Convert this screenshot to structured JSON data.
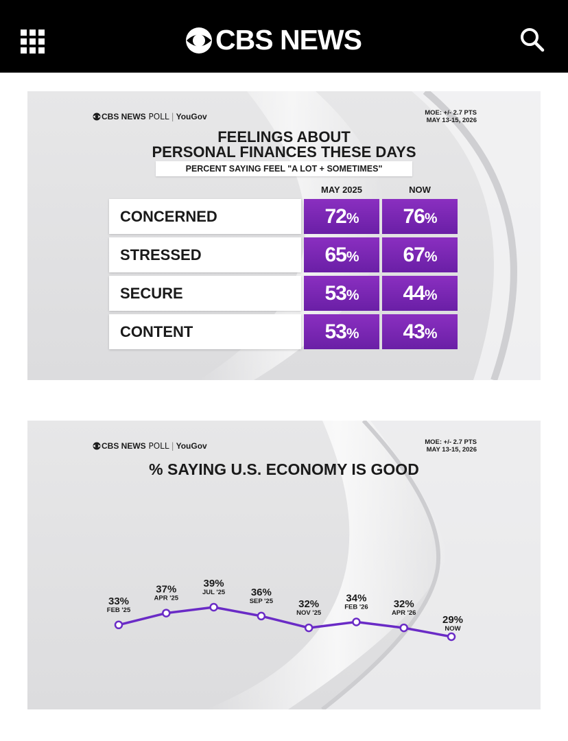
{
  "header": {
    "brand": "CBS NEWS",
    "menu_icon": "grid-menu-icon",
    "search_icon": "search-icon"
  },
  "poll_logo": {
    "cbs": "CBS NEWS",
    "poll": "POLL",
    "yougov": "YouGov"
  },
  "moe": {
    "line1": "MOE: +/- 2.7 PTS",
    "line2": "MAY 13-15, 2026"
  },
  "card1": {
    "title_line1": "FEELINGS ABOUT",
    "title_line2": "PERSONAL FINANCES THESE DAYS",
    "subtitle": "PERCENT SAYING FEEL \"A LOT + SOMETIMES\"",
    "col_may": "MAY 2025",
    "col_now": "NOW",
    "rows": [
      {
        "label": "CONCERNED",
        "may": "72",
        "now": "76"
      },
      {
        "label": "STRESSED",
        "may": "65",
        "now": "67"
      },
      {
        "label": "SECURE",
        "may": "53",
        "now": "44"
      },
      {
        "label": "CONTENT",
        "may": "53",
        "now": "43"
      }
    ],
    "pct_sign": "%"
  },
  "chart_data": {
    "type": "line",
    "title": "% SAYING U.S. ECONOMY IS GOOD",
    "categories": [
      "FEB '25",
      "APR '25",
      "JUL '25",
      "SEP '25",
      "NOV '25",
      "FEB '26",
      "APR '26",
      "NOW"
    ],
    "values": [
      33,
      37,
      39,
      36,
      32,
      34,
      32,
      29
    ],
    "value_labels": [
      "33%",
      "37%",
      "39%",
      "36%",
      "32%",
      "34%",
      "32%",
      "29%"
    ],
    "xlabel": "",
    "ylabel": "",
    "grid": false,
    "line_color": "#6a2bc6",
    "marker_fill": "#ffffff"
  }
}
